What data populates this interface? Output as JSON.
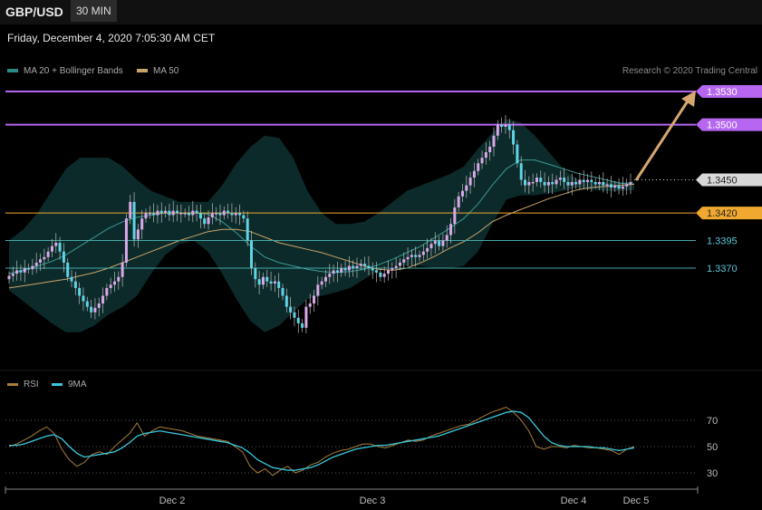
{
  "header": {
    "symbol": "GBP/USD",
    "timeframe": "30 MIN",
    "datetime": "Friday, December 4, 2020 7:05:30 AM CET",
    "copyright": "Research © 2020 Trading Central"
  },
  "legend": {
    "ma20": "MA 20 + Bollinger Bands",
    "ma50": "MA 50",
    "rsi": "RSI",
    "rsi_ma": "9MA"
  },
  "colors": {
    "up": "#d9a8e8",
    "down": "#5fd4e6",
    "band_fill": "#0c2a2a",
    "ma20": "#3a9a98",
    "ma50": "#c9a46a",
    "resistance": "#b666f0",
    "pivot": "#f0a830",
    "support": "#45a8a8",
    "arrow": "#d6a670",
    "rsi": "#a87f38",
    "rsi_ma": "#39c9df"
  },
  "chart_data": {
    "type": "line",
    "price_range": [
      1.3295,
      1.3545
    ],
    "x_labels": [
      "Dec 2",
      "Dec 3",
      "Dec 4",
      "Dec 5"
    ],
    "levels": [
      {
        "label": "1.3530",
        "value": 1.353,
        "kind": "resistance"
      },
      {
        "label": "1.3500",
        "value": 1.35,
        "kind": "resistance"
      },
      {
        "label": "1.3450",
        "value": 1.345,
        "kind": "current"
      },
      {
        "label": "1.3420",
        "value": 1.342,
        "kind": "pivot"
      },
      {
        "label": "1.3395",
        "value": 1.3395,
        "kind": "support"
      },
      {
        "label": "1.3370",
        "value": 1.337,
        "kind": "support"
      }
    ],
    "close": [
      1.3363,
      1.3365,
      1.3368,
      1.3366,
      1.337,
      1.3369,
      1.3372,
      1.3375,
      1.3378,
      1.338,
      1.3385,
      1.339,
      1.3393,
      1.3385,
      1.3375,
      1.3362,
      1.3358,
      1.3352,
      1.3345,
      1.334,
      1.3335,
      1.333,
      1.3334,
      1.3338,
      1.3345,
      1.3352,
      1.3355,
      1.3358,
      1.3362,
      1.3375,
      1.3415,
      1.343,
      1.3396,
      1.3405,
      1.3415,
      1.342,
      1.342,
      1.3418,
      1.3422,
      1.342,
      1.3422,
      1.3418,
      1.3422,
      1.342,
      1.342,
      1.342,
      1.3418,
      1.3422,
      1.342,
      1.3415,
      1.341,
      1.3416,
      1.342,
      1.342,
      1.3418,
      1.3422,
      1.342,
      1.3418,
      1.342,
      1.3418,
      1.3415,
      1.3395,
      1.337,
      1.336,
      1.3355,
      1.3362,
      1.3358,
      1.3356,
      1.3358,
      1.3352,
      1.3345,
      1.3335,
      1.333,
      1.3325,
      1.332,
      1.3316,
      1.3335,
      1.3338,
      1.3345,
      1.3355,
      1.3358,
      1.3362,
      1.3365,
      1.3368,
      1.3366,
      1.337,
      1.3368,
      1.3372,
      1.337,
      1.3372,
      1.3374,
      1.3372,
      1.337,
      1.3368,
      1.3366,
      1.3362,
      1.3365,
      1.3368,
      1.337,
      1.3372,
      1.3375,
      1.3378,
      1.338,
      1.3382,
      1.338,
      1.3382,
      1.3385,
      1.3388,
      1.3392,
      1.3395,
      1.339,
      1.3395,
      1.34,
      1.341,
      1.3425,
      1.3435,
      1.344,
      1.3445,
      1.3452,
      1.3458,
      1.3465,
      1.347,
      1.3475,
      1.348,
      1.349,
      1.35,
      1.3498,
      1.35,
      1.3495,
      1.3482,
      1.3465,
      1.345,
      1.3445,
      1.3448,
      1.3448,
      1.3452,
      1.3448,
      1.3445,
      1.3448,
      1.3446,
      1.345,
      1.3452,
      1.3448,
      1.3445,
      1.3448,
      1.3446,
      1.345,
      1.3448,
      1.345,
      1.3448,
      1.3446,
      1.3448,
      1.3445,
      1.3446,
      1.3443,
      1.3445,
      1.3442,
      1.3444,
      1.3446,
      1.3448
    ],
    "bb_upper": [
      1.3395,
      1.3405,
      1.342,
      1.344,
      1.346,
      1.347,
      1.347,
      1.347,
      1.3462,
      1.345,
      1.344,
      1.3435,
      1.343,
      1.343,
      1.343,
      1.3445,
      1.3465,
      1.348,
      1.349,
      1.3488,
      1.347,
      1.344,
      1.342,
      1.341,
      1.341,
      1.3412,
      1.342,
      1.343,
      1.344,
      1.3445,
      1.345,
      1.3455,
      1.3462,
      1.3478,
      1.3492,
      1.3505,
      1.3502,
      1.349,
      1.3475,
      1.346,
      1.345,
      1.3448,
      1.3448,
      1.3448,
      1.3448
    ],
    "bb_lower": [
      1.335,
      1.334,
      1.333,
      1.332,
      1.3312,
      1.3312,
      1.3318,
      1.3328,
      1.3335,
      1.3345,
      1.3365,
      1.3382,
      1.3392,
      1.3395,
      1.3385,
      1.3365,
      1.3342,
      1.3322,
      1.3312,
      1.3318,
      1.333,
      1.3342,
      1.3345,
      1.3348,
      1.3352,
      1.336,
      1.3368,
      1.3372,
      1.3372,
      1.3372,
      1.337,
      1.337,
      1.3372,
      1.3385,
      1.341,
      1.3432,
      1.3436,
      1.3436,
      1.3438,
      1.344,
      1.3443,
      1.3441,
      1.344,
      1.344,
      1.3441
    ],
    "ma20": [
      1.3365,
      1.3368,
      1.3372,
      1.3376,
      1.3382,
      1.339,
      1.3398,
      1.3406,
      1.3412,
      1.3416,
      1.3418,
      1.342,
      1.342,
      1.342,
      1.3419,
      1.3412,
      1.3402,
      1.339,
      1.338,
      1.3375,
      1.3372,
      1.3369,
      1.3367,
      1.3366,
      1.3367,
      1.3369,
      1.3373,
      1.3378,
      1.3384,
      1.339,
      1.3398,
      1.3406,
      1.3415,
      1.3428,
      1.3445,
      1.346,
      1.3468,
      1.3468,
      1.3464,
      1.346,
      1.3456,
      1.3453,
      1.345,
      1.3447,
      1.3446
    ],
    "ma50": [
      1.3352,
      1.3354,
      1.3356,
      1.3358,
      1.336,
      1.3363,
      1.3366,
      1.337,
      1.3375,
      1.338,
      1.3385,
      1.339,
      1.3395,
      1.3399,
      1.3403,
      1.3405,
      1.3405,
      1.3403,
      1.3398,
      1.3393,
      1.339,
      1.3387,
      1.3384,
      1.338,
      1.3376,
      1.3372,
      1.3369,
      1.3368,
      1.337,
      1.3375,
      1.3381,
      1.3388,
      1.3394,
      1.3402,
      1.3412,
      1.3418,
      1.3423,
      1.3428,
      1.3433,
      1.3437,
      1.3441,
      1.3443,
      1.3444,
      1.3445,
      1.3446
    ],
    "rsi_levels": [
      {
        "label": "70",
        "value": 70
      },
      {
        "label": "50",
        "value": 50
      },
      {
        "label": "30",
        "value": 30
      }
    ],
    "rsi_range": [
      25,
      82
    ],
    "rsi": [
      50,
      52,
      55,
      58,
      62,
      65,
      60,
      48,
      40,
      35,
      38,
      44,
      46,
      44,
      50,
      55,
      60,
      68,
      58,
      62,
      65,
      64,
      63,
      62,
      60,
      58,
      57,
      56,
      55,
      54,
      50,
      46,
      35,
      30,
      33,
      28,
      32,
      35,
      30,
      32,
      36,
      38,
      42,
      45,
      47,
      48,
      50,
      52,
      52,
      50,
      49,
      51,
      53,
      55,
      54,
      55,
      58,
      60,
      62,
      64,
      66,
      67,
      70,
      73,
      76,
      78,
      80,
      76,
      70,
      62,
      50,
      48,
      50,
      50,
      49,
      51,
      50,
      49,
      49,
      48,
      47,
      44,
      48,
      50
    ],
    "rsi_ma": [
      51,
      51,
      52,
      54,
      56,
      58,
      59,
      56,
      50,
      45,
      42,
      43,
      44,
      45,
      46,
      49,
      53,
      58,
      60,
      61,
      62,
      61,
      60,
      59,
      58,
      57,
      56,
      55,
      54,
      53,
      51,
      49,
      45,
      40,
      37,
      34,
      33,
      32,
      32,
      33,
      34,
      36,
      39,
      42,
      44,
      46,
      48,
      49,
      50,
      51,
      51,
      52,
      53,
      54,
      55,
      56,
      57,
      58,
      60,
      62,
      64,
      66,
      68,
      70,
      72,
      74,
      76,
      77,
      76,
      72,
      65,
      58,
      53,
      51,
      50,
      50,
      50,
      50,
      49,
      49,
      48,
      47,
      48,
      49
    ]
  }
}
